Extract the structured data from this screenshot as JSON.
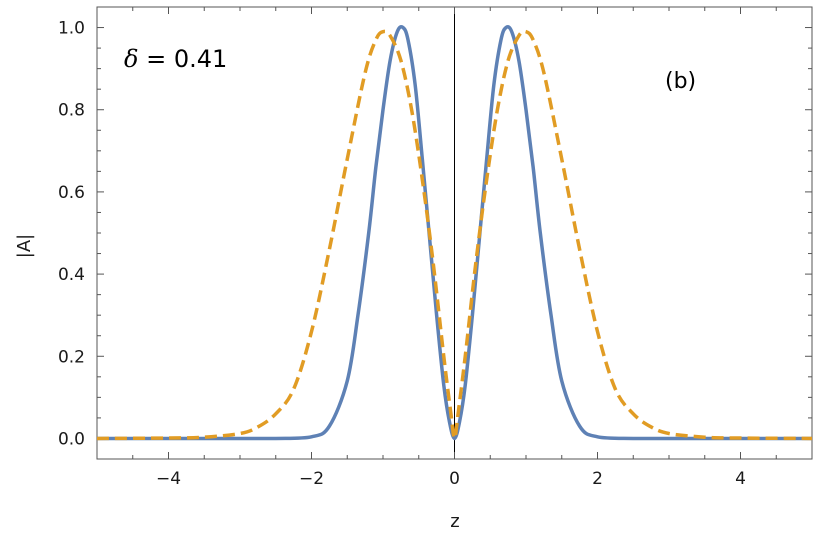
{
  "chart_data": {
    "type": "line",
    "title": "",
    "xlabel": "z",
    "ylabel": "|A|",
    "xlim": [
      -5,
      5
    ],
    "ylim": [
      -0.05,
      1.05
    ],
    "x_ticks": [
      -4,
      -2,
      0,
      2,
      4
    ],
    "x_tick_labels": [
      "−4",
      "−2",
      "0",
      "2",
      "4"
    ],
    "y_ticks": [
      0.0,
      0.2,
      0.4,
      0.6,
      0.8,
      1.0
    ],
    "y_tick_labels": [
      "0.0",
      "0.2",
      "0.4",
      "0.6",
      "0.8",
      "1.0"
    ],
    "grid": false,
    "annotations": {
      "delta_symbol": "δ",
      "delta_text": " = 0.41",
      "panel_label": "(b)"
    },
    "series": [
      {
        "style": "solid",
        "color": "#5e81b5",
        "x": [
          -5.0,
          -4.0,
          -3.0,
          -2.5,
          -2.0,
          -1.75,
          -1.5,
          -1.35,
          -1.2,
          -1.1,
          -1.0,
          -0.9,
          -0.8,
          -0.72,
          -0.65,
          -0.55,
          -0.45,
          -0.35,
          -0.25,
          -0.15,
          -0.07,
          0.0,
          0.07,
          0.15,
          0.25,
          0.35,
          0.45,
          0.55,
          0.65,
          0.72,
          0.8,
          0.9,
          1.0,
          1.1,
          1.2,
          1.35,
          1.5,
          1.75,
          2.0,
          2.5,
          3.0,
          4.0,
          5.0
        ],
        "y": [
          0.0,
          0.0,
          0.0,
          0.0,
          0.004,
          0.03,
          0.14,
          0.3,
          0.5,
          0.66,
          0.8,
          0.92,
          0.99,
          1.0,
          0.97,
          0.86,
          0.68,
          0.49,
          0.3,
          0.13,
          0.04,
          0.0,
          0.04,
          0.13,
          0.3,
          0.49,
          0.68,
          0.86,
          0.97,
          1.0,
          0.99,
          0.92,
          0.8,
          0.66,
          0.5,
          0.3,
          0.14,
          0.03,
          0.004,
          0.0,
          0.0,
          0.0,
          0.0
        ]
      },
      {
        "style": "dashed",
        "color": "#e19c24",
        "x": [
          -5.0,
          -4.0,
          -3.5,
          -3.0,
          -2.75,
          -2.5,
          -2.25,
          -2.0,
          -1.75,
          -1.5,
          -1.25,
          -1.1,
          -1.0,
          -0.9,
          -0.75,
          -0.6,
          -0.45,
          -0.3,
          -0.15,
          -0.05,
          0.0,
          0.05,
          0.15,
          0.3,
          0.45,
          0.6,
          0.75,
          0.9,
          1.0,
          1.1,
          1.25,
          1.5,
          1.75,
          2.0,
          2.25,
          2.5,
          2.75,
          3.0,
          3.5,
          4.0,
          5.0
        ],
        "y": [
          0.0,
          0.001,
          0.003,
          0.012,
          0.028,
          0.06,
          0.12,
          0.26,
          0.46,
          0.68,
          0.89,
          0.97,
          0.99,
          0.98,
          0.92,
          0.8,
          0.63,
          0.43,
          0.2,
          0.06,
          0.0,
          0.06,
          0.2,
          0.43,
          0.63,
          0.8,
          0.92,
          0.98,
          0.99,
          0.97,
          0.89,
          0.68,
          0.46,
          0.26,
          0.12,
          0.06,
          0.028,
          0.012,
          0.003,
          0.001,
          0.0
        ]
      }
    ]
  }
}
